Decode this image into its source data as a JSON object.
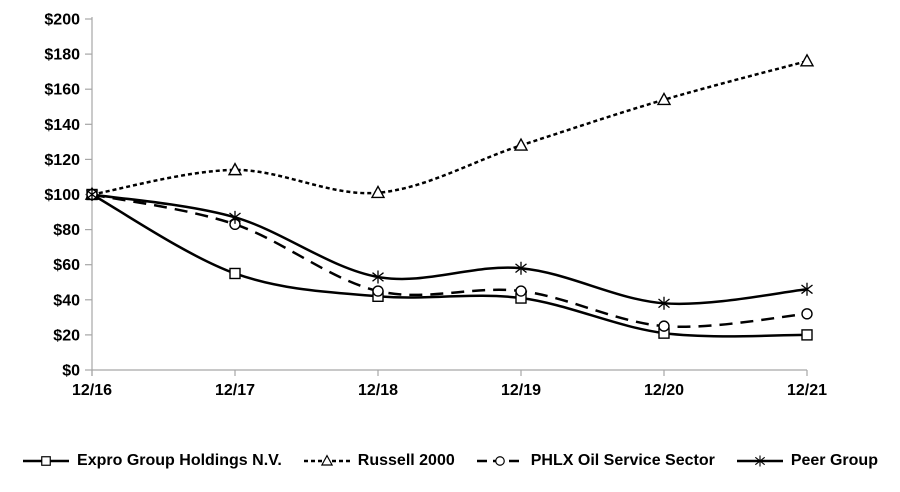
{
  "chart_data": {
    "type": "line",
    "title": "",
    "categories": [
      "12/16",
      "12/17",
      "12/18",
      "12/19",
      "12/20",
      "12/21"
    ],
    "y_axis": {
      "min": 0,
      "max": 200,
      "step": 20,
      "unit": "$",
      "tick_labels": [
        "$0",
        "$20",
        "$40",
        "$60",
        "$80",
        "$100",
        "$120",
        "$140",
        "$160",
        "$180",
        "$200"
      ]
    },
    "series": [
      {
        "name": "Expro Group Holdings N.V.",
        "marker": "square",
        "line_style": "solid",
        "values": [
          100,
          55,
          42,
          41,
          21,
          20
        ]
      },
      {
        "name": "Russell 2000",
        "marker": "triangle",
        "line_style": "dotted",
        "values": [
          100,
          114,
          101,
          128,
          154,
          176
        ]
      },
      {
        "name": "PHLX Oil Service Sector",
        "marker": "circle",
        "line_style": "dashed",
        "values": [
          100,
          83,
          45,
          45,
          25,
          32
        ]
      },
      {
        "name": "Peer Group",
        "marker": "asterisk",
        "line_style": "solid",
        "values": [
          100,
          87,
          53,
          58,
          38,
          46
        ]
      }
    ],
    "legend_position": "bottom",
    "grid": false,
    "smoothed_lines": true,
    "colors": {
      "series_line": "#000000",
      "axis_line": "#a6a6a6",
      "text": "#000000",
      "background": "#ffffff"
    }
  }
}
